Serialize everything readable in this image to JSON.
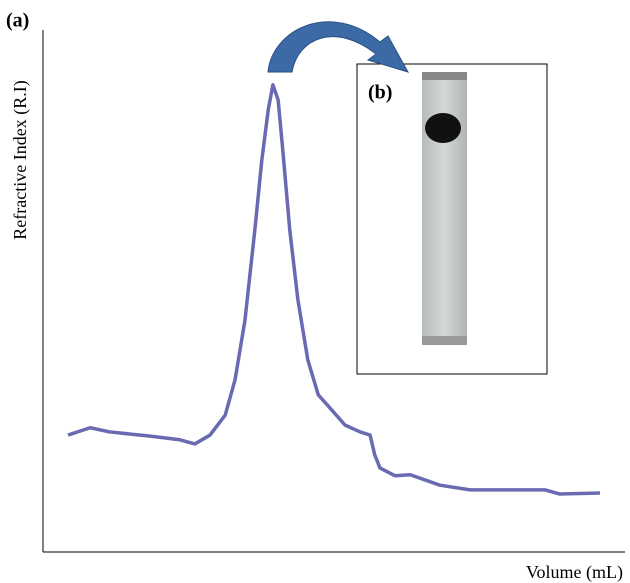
{
  "chart_data": {
    "type": "line",
    "panel_labels": [
      "(a)",
      "(b)"
    ],
    "x_label": "Volume (mL)",
    "y_label": "Refractive Index (R.I)",
    "xlim": [
      0,
      100
    ],
    "ylim": [
      0,
      100
    ],
    "x": [
      4.3,
      8.1,
      11.5,
      18.4,
      23.5,
      26.1,
      28.7,
      31.3,
      33.0,
      34.7,
      36.4,
      37.6,
      38.7,
      39.5,
      40.4,
      41.2,
      42.4,
      43.8,
      45.5,
      47.3,
      49.3,
      51.9,
      54.5,
      56.2,
      57.0,
      57.9,
      60.5,
      63.1,
      68.2,
      73.4,
      82.0,
      86.3,
      88.8,
      95.7
    ],
    "series": [
      {
        "color": "#6a6ab2",
        "values": [
          22.4,
          23.8,
          23.0,
          22.2,
          21.5,
          20.7,
          22.4,
          26.2,
          33.0,
          44.4,
          61.7,
          75.1,
          84.7,
          89.5,
          86.6,
          77.0,
          61.7,
          48.3,
          36.8,
          30.1,
          27.6,
          24.3,
          23.0,
          22.4,
          18.6,
          16.1,
          14.6,
          14.8,
          12.8,
          11.9,
          11.9,
          11.9,
          11.1,
          11.3
        ]
      }
    ]
  }
}
